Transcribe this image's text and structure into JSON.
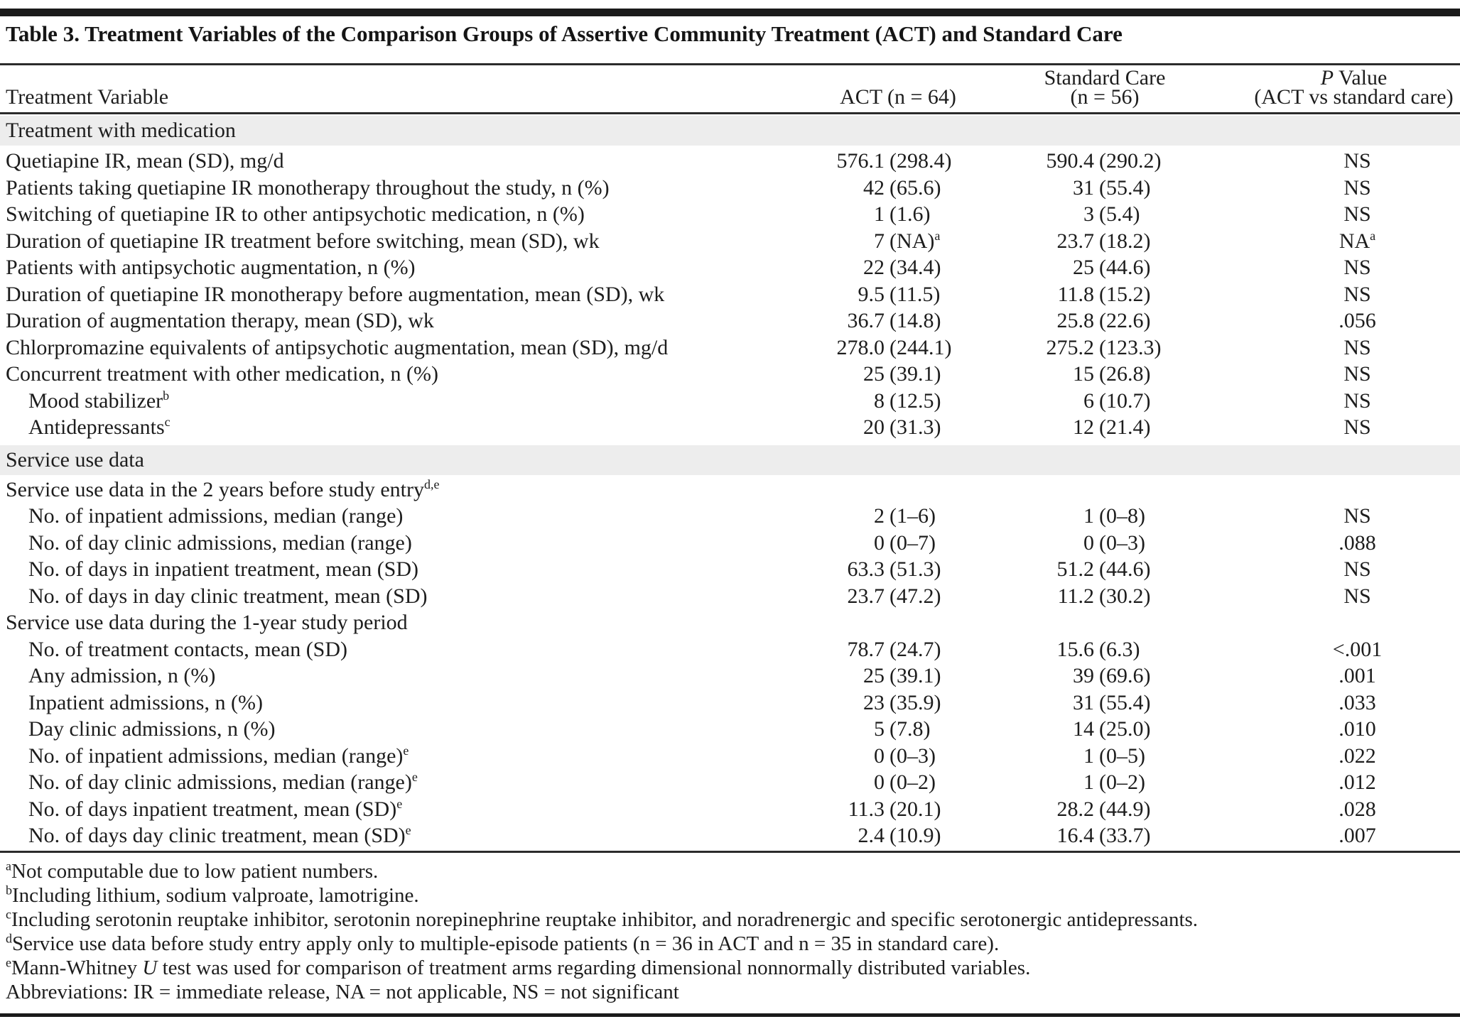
{
  "header": {
    "title": "Table 3. Treatment Variables of the Comparison Groups of Assertive Community Treatment (ACT) and Standard Care",
    "col_variable": "Treatment Variable",
    "col_act": "ACT (n = 64)",
    "col_std_line1": "Standard Care",
    "col_std_line2": "(n = 56)",
    "col_p_italic": "P",
    "col_p_rest": " Value",
    "col_p_line2": "(ACT vs standard care)"
  },
  "colors": {
    "band": "#ededed",
    "bar": "#1a1a1a",
    "text": "#1d1d1d"
  },
  "rows": [
    {
      "type": "section",
      "label": "Treatment with medication"
    },
    {
      "type": "data",
      "indent": 0,
      "label": "Quetiapine IR, mean (SD), mg/d",
      "act_num": "576.1",
      "act_paren": "(298.4)",
      "std_num": "590.4",
      "std_paren": "(290.2)",
      "p": "NS"
    },
    {
      "type": "data",
      "indent": 0,
      "label": "Patients taking quetiapine IR monotherapy throughout the study, n (%)",
      "act_num": "42",
      "act_paren": "(65.6)",
      "std_num": "31",
      "std_paren": "(55.4)",
      "p": "NS"
    },
    {
      "type": "data",
      "indent": 0,
      "label": "Switching of quetiapine IR to other antipsychotic medication, n (%)",
      "act_num": "1",
      "act_paren": "(1.6)",
      "std_num": "3",
      "std_paren": "(5.4)",
      "p": "NS"
    },
    {
      "type": "data",
      "indent": 0,
      "label": "Duration of quetiapine IR treatment before switching, mean (SD), wk",
      "act_num": "7",
      "act_paren": "(NA)",
      "act_sup": "a",
      "std_num": "23.7",
      "std_paren": "(18.2)",
      "p": "NA",
      "p_sup": "a"
    },
    {
      "type": "data",
      "indent": 0,
      "label": "Patients with antipsychotic augmentation, n (%)",
      "act_num": "22",
      "act_paren": "(34.4)",
      "std_num": "25",
      "std_paren": "(44.6)",
      "p": "NS"
    },
    {
      "type": "data",
      "indent": 0,
      "label": "Duration of quetiapine IR monotherapy before augmentation, mean (SD), wk",
      "act_num": "9.5",
      "act_paren": "(11.5)",
      "std_num": "11.8",
      "std_paren": "(15.2)",
      "p": "NS"
    },
    {
      "type": "data",
      "indent": 0,
      "label": "Duration of augmentation therapy, mean (SD), wk",
      "act_num": "36.7",
      "act_paren": "(14.8)",
      "std_num": "25.8",
      "std_paren": "(22.6)",
      "p": ".056"
    },
    {
      "type": "data",
      "indent": 0,
      "label": "Chlorpromazine equivalents of antipsychotic augmentation, mean (SD), mg/d",
      "act_num": "278.0",
      "act_paren": "(244.1)",
      "std_num": "275.2",
      "std_paren": "(123.3)",
      "p": "NS"
    },
    {
      "type": "data",
      "indent": 0,
      "label": "Concurrent treatment with other medication, n (%)",
      "act_num": "25",
      "act_paren": "(39.1)",
      "std_num": "15",
      "std_paren": "(26.8)",
      "p": "NS"
    },
    {
      "type": "data",
      "indent": 1,
      "label": "Mood stabilizer",
      "label_sup": "b",
      "act_num": "8",
      "act_paren": "(12.5)",
      "std_num": "6",
      "std_paren": "(10.7)",
      "p": "NS"
    },
    {
      "type": "data",
      "indent": 1,
      "label": "Antidepressants",
      "label_sup": "c",
      "act_num": "20",
      "act_paren": "(31.3)",
      "std_num": "12",
      "std_paren": "(21.4)",
      "p": "NS"
    },
    {
      "type": "section",
      "label": "Service use data"
    },
    {
      "type": "data",
      "indent": 0,
      "label": "Service use data in the 2 years before study entry",
      "label_sup": "d,e"
    },
    {
      "type": "data",
      "indent": 1,
      "label": "No. of inpatient admissions, median (range)",
      "act_num": "2",
      "act_paren": "(1–6)",
      "std_num": "1",
      "std_paren": "(0–8)",
      "p": "NS"
    },
    {
      "type": "data",
      "indent": 1,
      "label": "No. of day clinic admissions, median (range)",
      "act_num": "0",
      "act_paren": "(0–7)",
      "std_num": "0",
      "std_paren": "(0–3)",
      "p": ".088"
    },
    {
      "type": "data",
      "indent": 1,
      "label": "No. of days in inpatient treatment, mean (SD)",
      "act_num": "63.3",
      "act_paren": "(51.3)",
      "std_num": "51.2",
      "std_paren": "(44.6)",
      "p": "NS"
    },
    {
      "type": "data",
      "indent": 1,
      "label": "No. of days in day clinic treatment, mean (SD)",
      "act_num": "23.7",
      "act_paren": "(47.2)",
      "std_num": "11.2",
      "std_paren": "(30.2)",
      "p": "NS"
    },
    {
      "type": "data",
      "indent": 0,
      "label": "Service use data during the 1-year study period"
    },
    {
      "type": "data",
      "indent": 1,
      "label": "No. of treatment contacts, mean (SD)",
      "act_num": "78.7",
      "act_paren": "(24.7)",
      "std_num": "15.6",
      "std_paren": "(6.3)",
      "p": "<.001"
    },
    {
      "type": "data",
      "indent": 1,
      "label": "Any admission, n (%)",
      "act_num": "25",
      "act_paren": "(39.1)",
      "std_num": "39",
      "std_paren": "(69.6)",
      "p": ".001"
    },
    {
      "type": "data",
      "indent": 1,
      "label": "Inpatient admissions, n (%)",
      "act_num": "23",
      "act_paren": "(35.9)",
      "std_num": "31",
      "std_paren": "(55.4)",
      "p": ".033"
    },
    {
      "type": "data",
      "indent": 1,
      "label": "Day clinic admissions, n (%)",
      "act_num": "5",
      "act_paren": "(7.8)",
      "std_num": "14",
      "std_paren": "(25.0)",
      "p": ".010"
    },
    {
      "type": "data",
      "indent": 1,
      "label": "No. of inpatient admissions, median (range)",
      "label_sup": "e",
      "act_num": "0",
      "act_paren": "(0–3)",
      "std_num": "1",
      "std_paren": "(0–5)",
      "p": ".022"
    },
    {
      "type": "data",
      "indent": 1,
      "label": "No. of day clinic admissions, median (range)",
      "label_sup": "e",
      "act_num": "0",
      "act_paren": "(0–2)",
      "std_num": "1",
      "std_paren": "(0–2)",
      "p": ".012"
    },
    {
      "type": "data",
      "indent": 1,
      "label": "No. of days inpatient treatment, mean (SD)",
      "label_sup": "e",
      "act_num": "11.3",
      "act_paren": "(20.1)",
      "std_num": "28.2",
      "std_paren": "(44.9)",
      "p": ".028"
    },
    {
      "type": "data",
      "indent": 1,
      "label": "No. of days day clinic treatment, mean (SD)",
      "label_sup": "e",
      "act_num": "2.4",
      "act_paren": "(10.9)",
      "std_num": "16.4",
      "std_paren": "(33.7)",
      "p": ".007"
    }
  ],
  "footnotes": [
    {
      "sup": "a",
      "text": "Not computable due to low patient numbers."
    },
    {
      "sup": "b",
      "text": "Including lithium, sodium valproate, lamotrigine."
    },
    {
      "sup": "c",
      "text": "Including serotonin reuptake inhibitor, serotonin norepinephrine reuptake inhibitor, and noradrenergic and specific serotonergic antidepressants."
    },
    {
      "sup": "d",
      "text": "Service use data before study entry apply only to multiple-episode patients (n = 36 in ACT and n = 35 in standard care)."
    },
    {
      "sup": "e",
      "pre": "Mann-Whitney ",
      "italic": "U",
      "post": " test was used for comparison of treatment arms regarding dimensional nonnormally distributed variables."
    },
    {
      "sup": "",
      "text": "Abbreviations: IR = immediate release, NA = not applicable, NS = not significant"
    }
  ]
}
